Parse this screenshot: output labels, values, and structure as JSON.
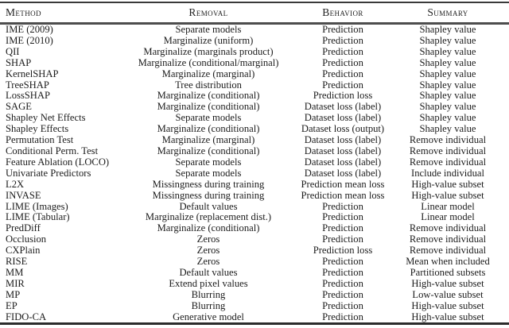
{
  "table": {
    "columns": [
      "Method",
      "Removal",
      "Behavior",
      "Summary"
    ],
    "rows": [
      [
        "IME (2009)",
        "Separate models",
        "Prediction",
        "Shapley value"
      ],
      [
        "IME (2010)",
        "Marginalize (uniform)",
        "Prediction",
        "Shapley value"
      ],
      [
        "QII",
        "Marginalize (marginals product)",
        "Prediction",
        "Shapley value"
      ],
      [
        "SHAP",
        "Marginalize (conditional/marginal)",
        "Prediction",
        "Shapley value"
      ],
      [
        "KernelSHAP",
        "Marginalize (marginal)",
        "Prediction",
        "Shapley value"
      ],
      [
        "TreeSHAP",
        "Tree distribution",
        "Prediction",
        "Shapley value"
      ],
      [
        "LossSHAP",
        "Marginalize (conditional)",
        "Prediction loss",
        "Shapley value"
      ],
      [
        "SAGE",
        "Marginalize (conditional)",
        "Dataset loss (label)",
        "Shapley value"
      ],
      [
        "Shapley Net Effects",
        "Separate models",
        "Dataset loss (label)",
        "Shapley value"
      ],
      [
        "Shapley Effects",
        "Marginalize (conditional)",
        "Dataset loss (output)",
        "Shapley value"
      ],
      [
        "Permutation Test",
        "Marginalize (marginal)",
        "Dataset loss (label)",
        "Remove individual"
      ],
      [
        "Conditional Perm. Test",
        "Marginalize (conditional)",
        "Dataset loss (label)",
        "Remove individual"
      ],
      [
        "Feature Ablation (LOCO)",
        "Separate models",
        "Dataset loss (label)",
        "Remove individual"
      ],
      [
        "Univariate Predictors",
        "Separate models",
        "Dataset loss (label)",
        "Include individual"
      ],
      [
        "L2X",
        "Missingness during training",
        "Prediction mean loss",
        "High-value subset"
      ],
      [
        "INVASE",
        "Missingness during training",
        "Prediction mean loss",
        "High-value subset"
      ],
      [
        "LIME (Images)",
        "Default values",
        "Prediction",
        "Linear model"
      ],
      [
        "LIME (Tabular)",
        "Marginalize (replacement dist.)",
        "Prediction",
        "Linear model"
      ],
      [
        "PredDiff",
        "Marginalize (conditional)",
        "Prediction",
        "Remove individual"
      ],
      [
        "Occlusion",
        "Zeros",
        "Prediction",
        "Remove individual"
      ],
      [
        "CXPlain",
        "Zeros",
        "Prediction loss",
        "Remove individual"
      ],
      [
        "RISE",
        "Zeros",
        "Prediction",
        "Mean when included"
      ],
      [
        "MM",
        "Default values",
        "Prediction",
        "Partitioned subsets"
      ],
      [
        "MIR",
        "Extend pixel values",
        "Prediction",
        "High-value subset"
      ],
      [
        "MP",
        "Blurring",
        "Prediction",
        "Low-value subset"
      ],
      [
        "EP",
        "Blurring",
        "Prediction",
        "High-value subset"
      ],
      [
        "FIDO-CA",
        "Generative model",
        "Prediction",
        "High-value subset"
      ]
    ]
  }
}
